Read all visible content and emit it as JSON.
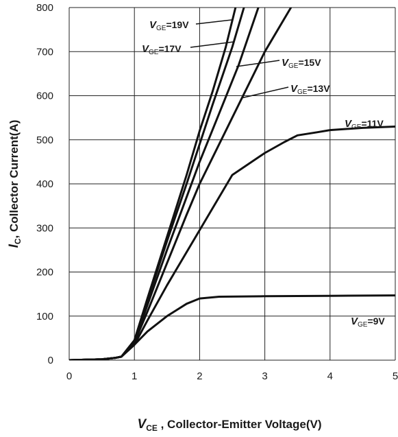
{
  "chart_data": {
    "type": "line",
    "xlabel": {
      "symbol": "V",
      "sub": "CE",
      "text": " , Collector-Emitter Voltage(V)"
    },
    "ylabel": {
      "symbol": "I",
      "sub": "C",
      "text": ", Collector Current(A)"
    },
    "xlim": [
      0,
      5
    ],
    "ylim": [
      0,
      800
    ],
    "xticks": [
      "0",
      "1",
      "2",
      "3",
      "4",
      "5"
    ],
    "yticks": [
      "0",
      "100",
      "200",
      "300",
      "400",
      "500",
      "600",
      "700",
      "800"
    ],
    "grid": true,
    "series": [
      {
        "name": "VGE=19V",
        "label": {
          "symbol": "V",
          "sub": "GE",
          "text": "=19V"
        },
        "x": [
          0,
          0.5,
          0.7,
          0.8,
          1.0,
          1.2,
          1.5,
          1.8,
          2.0,
          2.2,
          2.4,
          2.55
        ],
        "y": [
          0,
          2,
          5,
          8,
          45,
          140,
          280,
          420,
          520,
          610,
          710,
          800
        ]
      },
      {
        "name": "VGE=17V",
        "label": {
          "symbol": "V",
          "sub": "GE",
          "text": "=17V"
        },
        "x": [
          0,
          0.5,
          0.7,
          0.8,
          1.0,
          1.2,
          1.5,
          1.8,
          2.0,
          2.2,
          2.5,
          2.68
        ],
        "y": [
          0,
          2,
          5,
          8,
          45,
          135,
          270,
          400,
          490,
          580,
          710,
          800
        ]
      },
      {
        "name": "VGE=15V",
        "label": {
          "symbol": "V",
          "sub": "GE",
          "text": "=15V"
        },
        "x": [
          0,
          0.5,
          0.7,
          0.8,
          1.0,
          1.2,
          1.5,
          1.8,
          2.0,
          2.3,
          2.6,
          2.9
        ],
        "y": [
          0,
          2,
          5,
          8,
          42,
          125,
          250,
          370,
          450,
          560,
          670,
          800
        ]
      },
      {
        "name": "VGE=13V",
        "label": {
          "symbol": "V",
          "sub": "GE",
          "text": "=13V"
        },
        "x": [
          0,
          0.5,
          0.7,
          0.8,
          1.0,
          1.2,
          1.5,
          1.8,
          2.0,
          2.5,
          3.0,
          3.4
        ],
        "y": [
          0,
          2,
          5,
          8,
          40,
          110,
          220,
          330,
          400,
          550,
          700,
          800
        ]
      },
      {
        "name": "VGE=11V",
        "label": {
          "symbol": "V",
          "sub": "GE",
          "text": "=11V"
        },
        "x": [
          0,
          0.5,
          0.7,
          0.8,
          1.0,
          1.2,
          1.5,
          2.0,
          2.5,
          3.0,
          3.3,
          3.5,
          3.8,
          4.0,
          4.5,
          5.0
        ],
        "y": [
          0,
          2,
          5,
          8,
          35,
          90,
          170,
          295,
          420,
          470,
          495,
          510,
          517,
          522,
          527,
          530
        ]
      },
      {
        "name": "VGE=9V",
        "label": {
          "symbol": "V",
          "sub": "GE",
          "text": "=9V"
        },
        "x": [
          0,
          0.5,
          0.7,
          0.8,
          1.0,
          1.2,
          1.5,
          1.8,
          2.0,
          2.3,
          3.0,
          4.0,
          5.0
        ],
        "y": [
          0,
          2,
          5,
          8,
          35,
          65,
          100,
          128,
          140,
          144,
          145,
          146,
          147
        ]
      }
    ]
  }
}
